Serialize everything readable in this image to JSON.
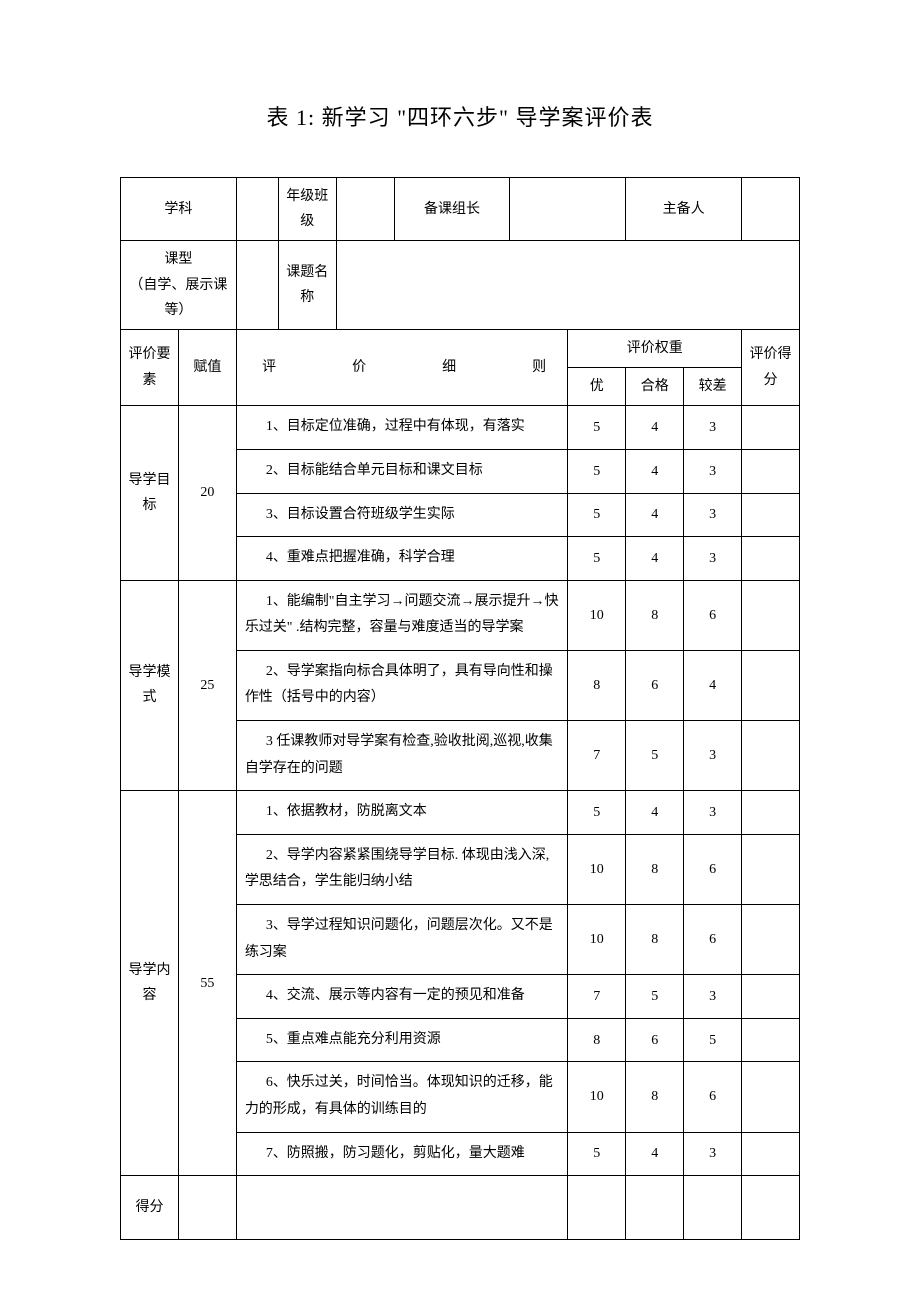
{
  "title": "表 1:  新学习 \"四环六步\" 导学案评价表",
  "header": {
    "subject_label": "学科",
    "grade_class_label": "年级班级",
    "prep_leader_label": "备课组长",
    "main_preparer_label": "主备人",
    "lesson_type_label": "课型",
    "lesson_type_sublabel": "（自学、展示课等）",
    "topic_name_label": "课题名称"
  },
  "table_header": {
    "element": "评价要素",
    "weight": "赋值",
    "criteria": "评　　价　　细　　则",
    "rating_weight": "评价权重",
    "excellent": "优",
    "pass": "合格",
    "poor": "较差",
    "score": "评价得分"
  },
  "sections": [
    {
      "name": "导学目标",
      "weight": "20",
      "rows": [
        {
          "criteria": "1、目标定位准确，过程中有体现，有落实",
          "excellent": "5",
          "pass": "4",
          "poor": "3"
        },
        {
          "criteria": "2、目标能结合单元目标和课文目标",
          "excellent": "5",
          "pass": "4",
          "poor": "3"
        },
        {
          "criteria": "3、目标设置合符班级学生实际",
          "excellent": "5",
          "pass": "4",
          "poor": "3"
        },
        {
          "criteria": "4、重难点把握准确，科学合理",
          "excellent": "5",
          "pass": "4",
          "poor": "3"
        }
      ]
    },
    {
      "name": "导学模式",
      "weight": "25",
      "rows": [
        {
          "criteria": "1、能编制\"自主学习→问题交流→展示提升→快乐过关\" .结构完整，容量与难度适当的导学案",
          "excellent": "10",
          "pass": "8",
          "poor": "6"
        },
        {
          "criteria": "2、导学案指向标合具体明了，具有导向性和操作性（括号中的内容）",
          "excellent": "8",
          "pass": "6",
          "poor": "4"
        },
        {
          "criteria": "3 任课教师对导学案有检查,验收批阅,巡视,收集自学存在的问题",
          "excellent": "7",
          "pass": "5",
          "poor": "3"
        }
      ]
    },
    {
      "name": "导学内容",
      "weight": "55",
      "rows": [
        {
          "criteria": "1、依据教材，防脱离文本",
          "excellent": "5",
          "pass": "4",
          "poor": "3"
        },
        {
          "criteria": "2、导学内容紧紧围绕导学目标. 体现由浅入深,学思结合，学生能归纳小结",
          "excellent": "10",
          "pass": "8",
          "poor": "6"
        },
        {
          "criteria": "3、导学过程知识问题化，问题层次化。又不是练习案",
          "excellent": "10",
          "pass": "8",
          "poor": "6"
        },
        {
          "criteria": "4、交流、展示等内容有一定的预见和准备",
          "excellent": "7",
          "pass": "5",
          "poor": "3"
        },
        {
          "criteria": "5、重点难点能充分利用资源",
          "excellent": "8",
          "pass": "6",
          "poor": "5"
        },
        {
          "criteria": "6、快乐过关，时间恰当。体现知识的迁移，能力的形成，有具体的训练目的",
          "excellent": "10",
          "pass": "8",
          "poor": "6"
        },
        {
          "criteria": "7、防照搬，防习题化，剪贴化，量大题难",
          "excellent": "5",
          "pass": "4",
          "poor": "3"
        }
      ]
    }
  ],
  "footer": {
    "score_label": "得分"
  }
}
